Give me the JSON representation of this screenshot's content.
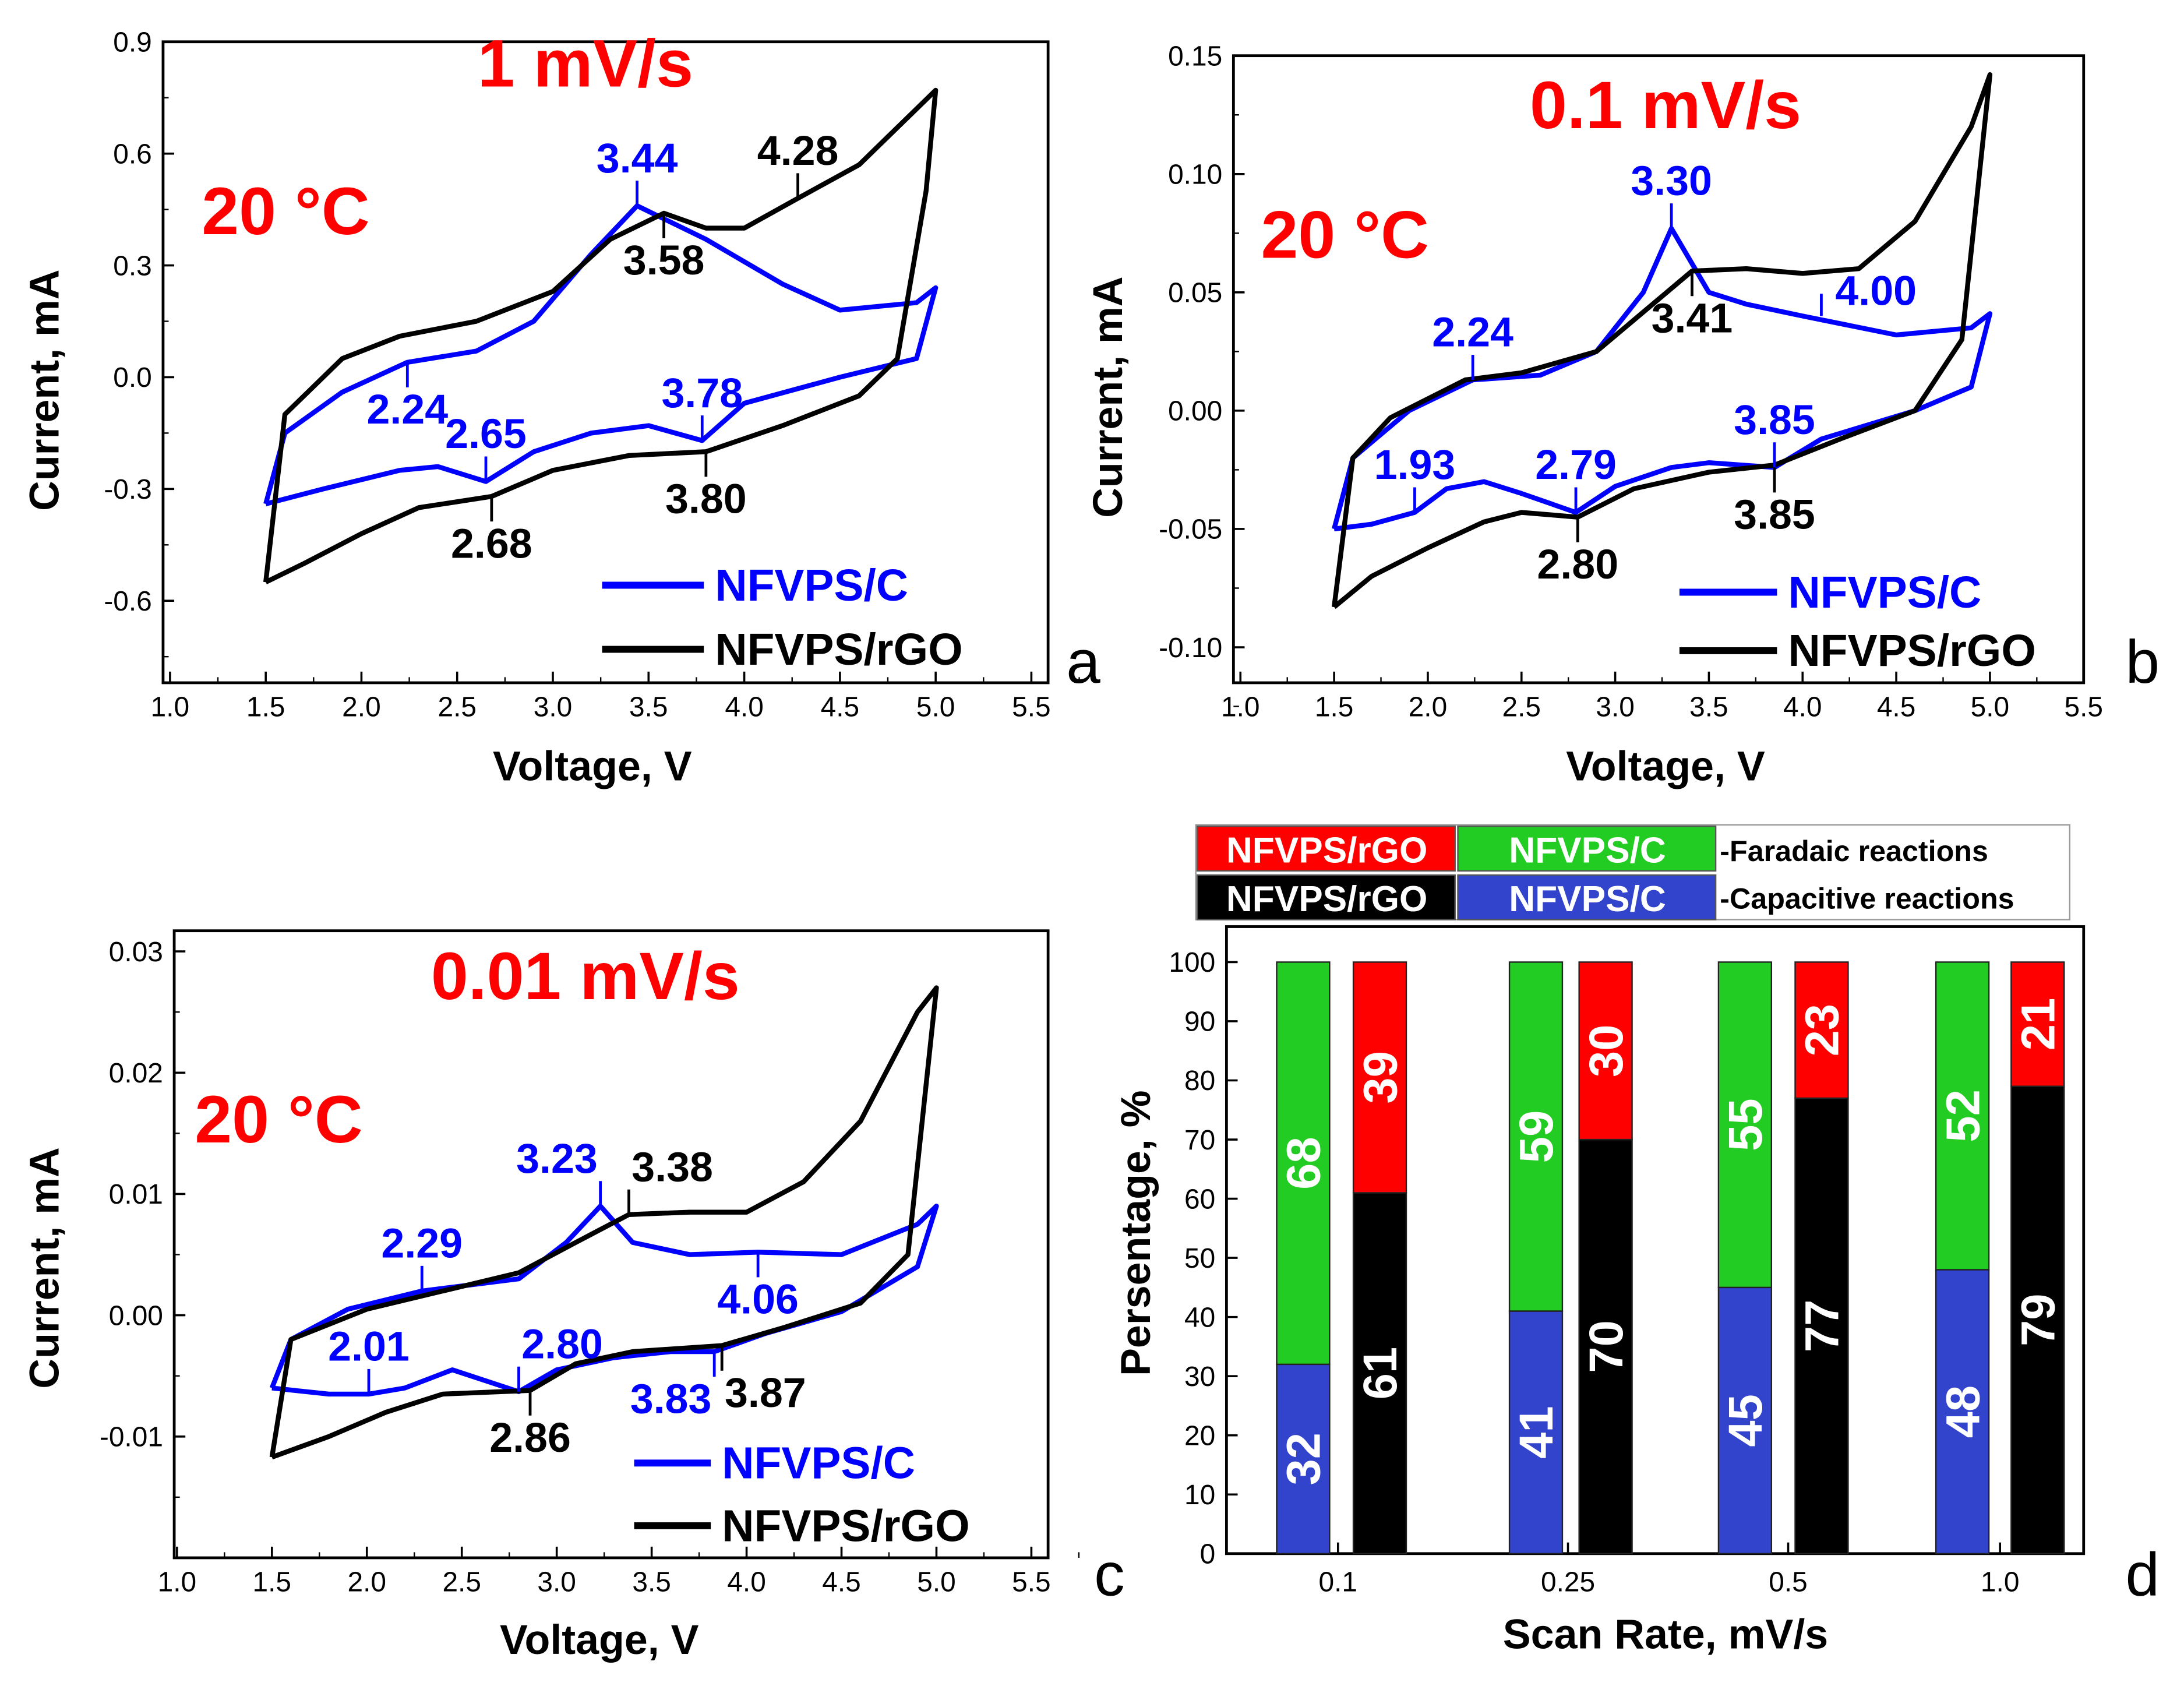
{
  "colors": {
    "blue": "#0000ff",
    "black": "#000000",
    "red": "#ff0000",
    "green": "#22cc22",
    "barblue": "#3344cc"
  },
  "chart_data": [
    {
      "panel": "a",
      "type": "line",
      "title": "1 mV/s",
      "temperature": "20 °C",
      "xlabel": "Voltage, V",
      "ylabel": "Current, mA",
      "xlim": [
        1.0,
        5.5
      ],
      "ylim": [
        -0.82,
        0.9
      ],
      "xticks": [
        "1.0",
        "1.5",
        "2.0",
        "2.5",
        "3.0",
        "3.5",
        "4.0",
        "4.5",
        "5.0",
        "5.5"
      ],
      "yticks": [
        "-0.6",
        "-0.3",
        "0.0",
        "0.3",
        "0.6",
        "0.9"
      ],
      "series": [
        {
          "name": "NFVPS/C",
          "color": "#0000ff",
          "points": [
            [
              1.5,
              -0.34
            ],
            [
              1.8,
              -0.3
            ],
            [
              2.2,
              -0.25
            ],
            [
              2.4,
              -0.24
            ],
            [
              2.65,
              -0.28
            ],
            [
              2.9,
              -0.2
            ],
            [
              3.2,
              -0.15
            ],
            [
              3.5,
              -0.13
            ],
            [
              3.78,
              -0.17
            ],
            [
              4.0,
              -0.07
            ],
            [
              4.5,
              0.0
            ],
            [
              4.9,
              0.05
            ],
            [
              5.0,
              0.24
            ],
            [
              4.9,
              0.2
            ],
            [
              4.5,
              0.18
            ],
            [
              4.2,
              0.25
            ],
            [
              3.8,
              0.37
            ],
            [
              3.44,
              0.46
            ],
            [
              3.2,
              0.33
            ],
            [
              2.9,
              0.15
            ],
            [
              2.6,
              0.07
            ],
            [
              2.24,
              0.04
            ],
            [
              1.9,
              -0.04
            ],
            [
              1.6,
              -0.15
            ],
            [
              1.5,
              -0.34
            ]
          ]
        },
        {
          "name": "NFVPS/rGO",
          "color": "#000000",
          "points": [
            [
              1.5,
              -0.55
            ],
            [
              1.7,
              -0.5
            ],
            [
              2.0,
              -0.42
            ],
            [
              2.3,
              -0.35
            ],
            [
              2.68,
              -0.32
            ],
            [
              3.0,
              -0.25
            ],
            [
              3.4,
              -0.21
            ],
            [
              3.8,
              -0.2
            ],
            [
              4.2,
              -0.13
            ],
            [
              4.6,
              -0.05
            ],
            [
              4.8,
              0.05
            ],
            [
              4.95,
              0.5
            ],
            [
              5.0,
              0.77
            ],
            [
              4.9,
              0.72
            ],
            [
              4.6,
              0.57
            ],
            [
              4.28,
              0.48
            ],
            [
              4.0,
              0.4
            ],
            [
              3.8,
              0.4
            ],
            [
              3.58,
              0.44
            ],
            [
              3.3,
              0.37
            ],
            [
              3.0,
              0.23
            ],
            [
              2.6,
              0.15
            ],
            [
              2.2,
              0.11
            ],
            [
              1.9,
              0.05
            ],
            [
              1.6,
              -0.1
            ],
            [
              1.5,
              -0.55
            ]
          ]
        }
      ],
      "annotations": [
        {
          "text": "3.44",
          "x": 3.44,
          "y": 0.46,
          "color": "#0000ff",
          "pos": "above"
        },
        {
          "text": "4.28",
          "x": 4.28,
          "y": 0.48,
          "color": "#000000",
          "pos": "above"
        },
        {
          "text": "3.58",
          "x": 3.58,
          "y": 0.44,
          "color": "#000000",
          "pos": "below"
        },
        {
          "text": "2.24",
          "x": 2.24,
          "y": 0.04,
          "color": "#0000ff",
          "pos": "below"
        },
        {
          "text": "2.65",
          "x": 2.65,
          "y": -0.28,
          "color": "#0000ff",
          "pos": "above"
        },
        {
          "text": "3.78",
          "x": 3.78,
          "y": -0.17,
          "color": "#0000ff",
          "pos": "above"
        },
        {
          "text": "3.80",
          "x": 3.8,
          "y": -0.2,
          "color": "#000000",
          "pos": "below"
        },
        {
          "text": "2.68",
          "x": 2.68,
          "y": -0.32,
          "color": "#000000",
          "pos": "below"
        }
      ]
    },
    {
      "panel": "b",
      "type": "line",
      "title": "0.1 mV/s",
      "temperature": "20 °C",
      "xlabel": "Voltage, V",
      "ylabel": "Current, mA",
      "xlim": [
        1.0,
        5.5
      ],
      "ylim": [
        -0.115,
        0.15
      ],
      "xticks": [
        "1.0",
        "1.5",
        "2.0",
        "2.5",
        "3.0",
        "3.5",
        "4.0",
        "4.5",
        "5.0",
        "5.5"
      ],
      "yticks": [
        "-0.10",
        "-0.05",
        "0.00",
        "0.05",
        "0.10",
        "0.15"
      ],
      "series": [
        {
          "name": "NFVPS/C",
          "color": "#0000ff",
          "points": [
            [
              1.5,
              -0.05
            ],
            [
              1.7,
              -0.048
            ],
            [
              1.93,
              -0.043
            ],
            [
              2.1,
              -0.033
            ],
            [
              2.3,
              -0.03
            ],
            [
              2.5,
              -0.035
            ],
            [
              2.79,
              -0.043
            ],
            [
              3.0,
              -0.032
            ],
            [
              3.3,
              -0.024
            ],
            [
              3.5,
              -0.022
            ],
            [
              3.85,
              -0.024
            ],
            [
              4.1,
              -0.012
            ],
            [
              4.6,
              0.0
            ],
            [
              4.9,
              0.01
            ],
            [
              5.0,
              0.041
            ],
            [
              4.9,
              0.035
            ],
            [
              4.5,
              0.032
            ],
            [
              4.0,
              0.04
            ],
            [
              3.7,
              0.045
            ],
            [
              3.5,
              0.05
            ],
            [
              3.3,
              0.077
            ],
            [
              3.15,
              0.05
            ],
            [
              2.9,
              0.025
            ],
            [
              2.6,
              0.015
            ],
            [
              2.24,
              0.013
            ],
            [
              1.9,
              0.0
            ],
            [
              1.6,
              -0.02
            ],
            [
              1.5,
              -0.05
            ]
          ]
        },
        {
          "name": "NFVPS/rGO",
          "color": "#000000",
          "points": [
            [
              1.5,
              -0.083
            ],
            [
              1.7,
              -0.07
            ],
            [
              2.0,
              -0.058
            ],
            [
              2.3,
              -0.047
            ],
            [
              2.5,
              -0.043
            ],
            [
              2.8,
              -0.045
            ],
            [
              3.1,
              -0.033
            ],
            [
              3.5,
              -0.026
            ],
            [
              3.85,
              -0.023
            ],
            [
              4.2,
              -0.012
            ],
            [
              4.6,
              0.0
            ],
            [
              4.85,
              0.03
            ],
            [
              5.0,
              0.142
            ],
            [
              4.9,
              0.12
            ],
            [
              4.6,
              0.08
            ],
            [
              4.3,
              0.06
            ],
            [
              4.0,
              0.058
            ],
            [
              3.7,
              0.06
            ],
            [
              3.41,
              0.059
            ],
            [
              3.2,
              0.045
            ],
            [
              2.9,
              0.025
            ],
            [
              2.5,
              0.016
            ],
            [
              2.2,
              0.013
            ],
            [
              1.8,
              -0.003
            ],
            [
              1.6,
              -0.02
            ],
            [
              1.5,
              -0.083
            ]
          ]
        }
      ],
      "annotations": [
        {
          "text": "3.30",
          "x": 3.3,
          "y": 0.077,
          "color": "#0000ff",
          "pos": "above"
        },
        {
          "text": "2.24",
          "x": 2.24,
          "y": 0.013,
          "color": "#0000ff",
          "pos": "above"
        },
        {
          "text": "3.41",
          "x": 3.41,
          "y": 0.059,
          "color": "#000000",
          "pos": "below"
        },
        {
          "text": "4.00",
          "x": 4.1,
          "y": 0.04,
          "color": "#0000ff",
          "pos": "right"
        },
        {
          "text": "1.93",
          "x": 1.93,
          "y": -0.043,
          "color": "#0000ff",
          "pos": "above"
        },
        {
          "text": "2.79",
          "x": 2.79,
          "y": -0.043,
          "color": "#0000ff",
          "pos": "above"
        },
        {
          "text": "3.85",
          "x": 3.85,
          "y": -0.024,
          "color": "#0000ff",
          "pos": "above"
        },
        {
          "text": "3.85",
          "x": 3.85,
          "y": -0.024,
          "color": "#000000",
          "pos": "below"
        },
        {
          "text": "2.80",
          "x": 2.8,
          "y": -0.045,
          "color": "#000000",
          "pos": "below"
        }
      ]
    },
    {
      "panel": "c",
      "type": "line",
      "title": "0.01 mV/s",
      "temperature": "20 °C",
      "xlabel": "Voltage, V",
      "ylabel": "Current, mA",
      "xlim": [
        1.0,
        5.5
      ],
      "ylim": [
        -0.02,
        0.0317
      ],
      "xticks": [
        "1.0",
        "1.5",
        "2.0",
        "2.5",
        "3.0",
        "3.5",
        "4.0",
        "4.5",
        "5.0",
        "5.5"
      ],
      "yticks": [
        "-0.01",
        "0.00",
        "0.01",
        "0.02",
        "0.03"
      ],
      "series": [
        {
          "name": "NFVPS/C",
          "color": "#0000ff",
          "points": [
            [
              1.5,
              -0.006
            ],
            [
              1.8,
              -0.0065
            ],
            [
              2.01,
              -0.0065
            ],
            [
              2.2,
              -0.006
            ],
            [
              2.45,
              -0.0045
            ],
            [
              2.8,
              -0.0063
            ],
            [
              3.0,
              -0.0045
            ],
            [
              3.3,
              -0.0035
            ],
            [
              3.6,
              -0.003
            ],
            [
              3.83,
              -0.003
            ],
            [
              4.1,
              -0.0015
            ],
            [
              4.5,
              0.0003
            ],
            [
              4.9,
              0.004
            ],
            [
              5.0,
              0.009
            ],
            [
              4.9,
              0.0075
            ],
            [
              4.5,
              0.005
            ],
            [
              4.06,
              0.0052
            ],
            [
              3.7,
              0.005
            ],
            [
              3.4,
              0.006
            ],
            [
              3.23,
              0.009
            ],
            [
              3.05,
              0.006
            ],
            [
              2.8,
              0.003
            ],
            [
              2.29,
              0.002
            ],
            [
              1.9,
              0.0005
            ],
            [
              1.6,
              -0.002
            ],
            [
              1.5,
              -0.006
            ]
          ]
        },
        {
          "name": "NFVPS/rGO",
          "color": "#000000",
          "points": [
            [
              1.5,
              -0.0117
            ],
            [
              1.8,
              -0.01
            ],
            [
              2.1,
              -0.008
            ],
            [
              2.4,
              -0.0065
            ],
            [
              2.86,
              -0.0062
            ],
            [
              3.1,
              -0.004
            ],
            [
              3.4,
              -0.003
            ],
            [
              3.87,
              -0.0025
            ],
            [
              4.2,
              -0.001
            ],
            [
              4.6,
              0.001
            ],
            [
              4.85,
              0.005
            ],
            [
              5.0,
              0.027
            ],
            [
              4.9,
              0.025
            ],
            [
              4.6,
              0.016
            ],
            [
              4.3,
              0.011
            ],
            [
              4.0,
              0.0085
            ],
            [
              3.7,
              0.0085
            ],
            [
              3.38,
              0.0083
            ],
            [
              3.1,
              0.006
            ],
            [
              2.8,
              0.0035
            ],
            [
              2.4,
              0.002
            ],
            [
              2.0,
              0.0005
            ],
            [
              1.6,
              -0.002
            ],
            [
              1.5,
              -0.0117
            ]
          ]
        }
      ],
      "annotations": [
        {
          "text": "3.23",
          "x": 3.23,
          "y": 0.009,
          "color": "#0000ff",
          "pos": "aboveleft"
        },
        {
          "text": "3.38",
          "x": 3.38,
          "y": 0.0083,
          "color": "#000000",
          "pos": "aboveright"
        },
        {
          "text": "2.29",
          "x": 2.29,
          "y": 0.002,
          "color": "#0000ff",
          "pos": "above"
        },
        {
          "text": "4.06",
          "x": 4.06,
          "y": 0.0052,
          "color": "#0000ff",
          "pos": "below"
        },
        {
          "text": "2.01",
          "x": 2.01,
          "y": -0.0065,
          "color": "#0000ff",
          "pos": "above"
        },
        {
          "text": "2.80",
          "x": 2.8,
          "y": -0.0063,
          "color": "#0000ff",
          "pos": "aboveright"
        },
        {
          "text": "2.86",
          "x": 2.86,
          "y": -0.0062,
          "color": "#000000",
          "pos": "below"
        },
        {
          "text": "3.83",
          "x": 3.83,
          "y": -0.003,
          "color": "#0000ff",
          "pos": "belowleft"
        },
        {
          "text": "3.87",
          "x": 3.87,
          "y": -0.0025,
          "color": "#000000",
          "pos": "belowright"
        }
      ]
    },
    {
      "panel": "d",
      "type": "bar",
      "xlabel": "Scan Rate, mV/s",
      "ylabel": "Persentage, %",
      "categories": [
        "0.1",
        "0.25",
        "0.5",
        "1.0"
      ],
      "ylim": [
        0,
        106
      ],
      "yticks": [
        "0",
        "10",
        "20",
        "30",
        "40",
        "50",
        "60",
        "70",
        "80",
        "90",
        "100"
      ],
      "series": [
        {
          "name": "NFVPS/C capacitive",
          "color": "#3344cc",
          "stack": "C",
          "values": [
            32,
            41,
            45,
            48
          ]
        },
        {
          "name": "NFVPS/C faradaic",
          "color": "#22cc22",
          "stack": "C",
          "values": [
            68,
            59,
            55,
            52
          ]
        },
        {
          "name": "NFVPS/rGO capacitive",
          "color": "#000000",
          "stack": "rGO",
          "values": [
            61,
            70,
            77,
            79
          ]
        },
        {
          "name": "NFVPS/rGO faradaic",
          "color": "#ff0000",
          "stack": "rGO",
          "values": [
            39,
            30,
            23,
            21
          ]
        }
      ],
      "legend": {
        "row1": {
          "a": "NFVPS/rGO",
          "b": "NFVPS/C",
          "label": "-Faradaic reactions"
        },
        "row2": {
          "a": "NFVPS/rGO",
          "b": "NFVPS/C",
          "label": "-Capacitive reactions"
        }
      }
    }
  ]
}
